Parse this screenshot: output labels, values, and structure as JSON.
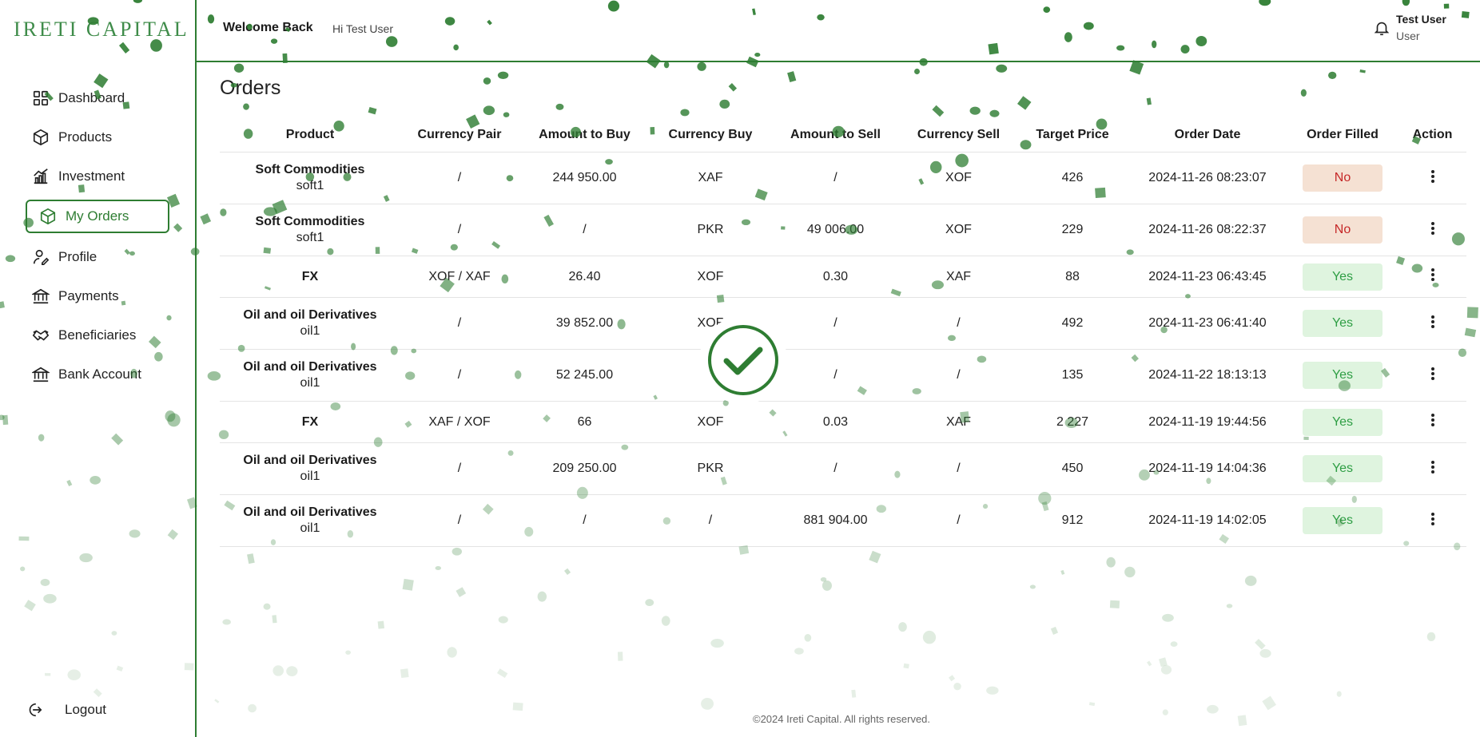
{
  "brand": {
    "logo_text": "IRETI CAPITAL"
  },
  "colors": {
    "accent": "#2e7d32",
    "no_bg": "#f5e1d3",
    "no_text": "#c62828",
    "yes_bg": "#dff4df",
    "yes_text": "#2e9e44"
  },
  "sidebar": {
    "items": [
      {
        "label": "Dashboard",
        "icon": "grid-icon"
      },
      {
        "label": "Products",
        "icon": "box-icon"
      },
      {
        "label": "Investment",
        "icon": "chart-icon"
      },
      {
        "label": "My Orders",
        "icon": "box-icon",
        "active": true
      },
      {
        "label": "Profile",
        "icon": "user-icon"
      },
      {
        "label": "Payments",
        "icon": "bank-icon"
      },
      {
        "label": "Beneficiaries",
        "icon": "handshake-icon"
      },
      {
        "label": "Bank Account",
        "icon": "bank-icon"
      }
    ],
    "logout_label": "Logout"
  },
  "header": {
    "welcome": "Welcome Back",
    "greeting": "Hi Test User",
    "user_name": "Test User",
    "user_role": "User"
  },
  "page": {
    "title": "Orders"
  },
  "table": {
    "columns": [
      "Product",
      "Currency Pair",
      "Amount to Buy",
      "Currency Buy",
      "Amount to Sell",
      "Currency Sell",
      "Target Price",
      "Order Date",
      "Order Filled",
      "Action"
    ],
    "rows": [
      {
        "product": "Soft Commodities",
        "sub": "soft1",
        "pair": "/",
        "amount_buy": "244 950.00",
        "currency_buy": "XAF",
        "amount_sell": "/",
        "currency_sell": "XOF",
        "target_price": "426",
        "order_date": "2024-11-26 08:23:07",
        "filled": "No"
      },
      {
        "product": "Soft Commodities",
        "sub": "soft1",
        "pair": "/",
        "amount_buy": "/",
        "currency_buy": "PKR",
        "amount_sell": "49 006.00",
        "currency_sell": "XOF",
        "target_price": "229",
        "order_date": "2024-11-26 08:22:37",
        "filled": "No"
      },
      {
        "product": "FX",
        "sub": "",
        "pair": "XOF / XAF",
        "amount_buy": "26.40",
        "currency_buy": "XOF",
        "amount_sell": "0.30",
        "currency_sell": "XAF",
        "target_price": "88",
        "order_date": "2024-11-23 06:43:45",
        "filled": "Yes"
      },
      {
        "product": "Oil and oil Derivatives",
        "sub": "oil1",
        "pair": "/",
        "amount_buy": "39 852.00",
        "currency_buy": "XOF",
        "amount_sell": "/",
        "currency_sell": "/",
        "target_price": "492",
        "order_date": "2024-11-23 06:41:40",
        "filled": "Yes"
      },
      {
        "product": "Oil and oil Derivatives",
        "sub": "oil1",
        "pair": "/",
        "amount_buy": "52 245.00",
        "currency_buy": "",
        "amount_sell": "/",
        "currency_sell": "/",
        "target_price": "135",
        "order_date": "2024-11-22 18:13:13",
        "filled": "Yes"
      },
      {
        "product": "FX",
        "sub": "",
        "pair": "XAF / XOF",
        "amount_buy": "66",
        "currency_buy": "XOF",
        "amount_sell": "0.03",
        "currency_sell": "XAF",
        "target_price": "2 227",
        "order_date": "2024-11-19 19:44:56",
        "filled": "Yes"
      },
      {
        "product": "Oil and oil Derivatives",
        "sub": "oil1",
        "pair": "/",
        "amount_buy": "209 250.00",
        "currency_buy": "PKR",
        "amount_sell": "/",
        "currency_sell": "/",
        "target_price": "450",
        "order_date": "2024-11-19 14:04:36",
        "filled": "Yes"
      },
      {
        "product": "Oil and oil Derivatives",
        "sub": "oil1",
        "pair": "/",
        "amount_buy": "/",
        "currency_buy": "/",
        "amount_sell": "881 904.00",
        "currency_sell": "/",
        "target_price": "912",
        "order_date": "2024-11-19 14:02:05",
        "filled": "Yes"
      }
    ]
  },
  "footer": {
    "text": "©2024 Ireti Capital. All rights reserved."
  }
}
